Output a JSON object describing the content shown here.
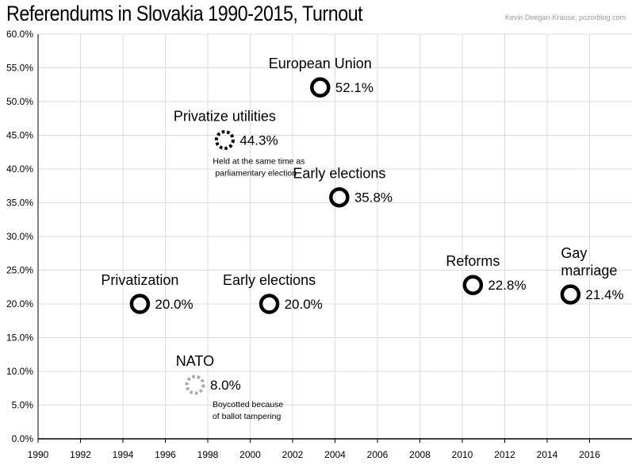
{
  "chart_data": {
    "type": "scatter",
    "title": "Referendums in Slovakia 1990-2015, Turnout",
    "credit": "Kevin Deegan-Krause, pozorblog.com",
    "xlabel": "",
    "ylabel": "",
    "xlim": [
      1990,
      2018
    ],
    "ylim": [
      0,
      60
    ],
    "x_ticks": [
      1990,
      1992,
      1994,
      1996,
      1998,
      2000,
      2002,
      2004,
      2006,
      2008,
      2010,
      2012,
      2014,
      2016
    ],
    "y_ticks": [
      "0.0%",
      "5.0%",
      "10.0%",
      "15.0%",
      "20.0%",
      "25.0%",
      "30.0%",
      "35.0%",
      "40.0%",
      "45.0%",
      "50.0%",
      "55.0%",
      "60.0%"
    ],
    "y_tick_values": [
      0,
      5,
      10,
      15,
      20,
      25,
      30,
      35,
      40,
      45,
      50,
      55,
      60
    ],
    "grid": true,
    "points": [
      {
        "id": "privatization",
        "label": "Privatization",
        "x": 1994.8,
        "y": 20.0,
        "value_label": "20.0%",
        "style": "solid",
        "color": "#000000"
      },
      {
        "id": "nato",
        "label": "NATO",
        "x": 1997.4,
        "y": 8.0,
        "value_label": "8.0%",
        "style": "dotted",
        "color": "#aaaaaa",
        "note": [
          "Boycotted because",
          "of ballot tampering"
        ]
      },
      {
        "id": "privatize-utilities",
        "label": "Privatize utilities",
        "x": 1998.8,
        "y": 44.3,
        "value_label": "44.3%",
        "style": "dotted",
        "color": "#000000",
        "note": [
          "Held at the same time as",
          "parliamentary election"
        ]
      },
      {
        "id": "early-elections-2000",
        "label": "Early elections",
        "x": 2000.9,
        "y": 20.0,
        "value_label": "20.0%",
        "style": "solid",
        "color": "#000000"
      },
      {
        "id": "european-union",
        "label": "European Union",
        "x": 2003.3,
        "y": 52.1,
        "value_label": "52.1%",
        "style": "solid",
        "color": "#000000"
      },
      {
        "id": "early-elections-2004",
        "label": "Early elections",
        "x": 2004.2,
        "y": 35.8,
        "value_label": "35.8%",
        "style": "solid",
        "color": "#000000"
      },
      {
        "id": "reforms",
        "label": "Reforms",
        "x": 2010.5,
        "y": 22.8,
        "value_label": "22.8%",
        "style": "solid",
        "color": "#000000"
      },
      {
        "id": "gay-marriage",
        "label": [
          "Gay",
          "marriage"
        ],
        "x": 2015.1,
        "y": 21.4,
        "value_label": "21.4%",
        "style": "solid",
        "color": "#000000"
      }
    ]
  }
}
